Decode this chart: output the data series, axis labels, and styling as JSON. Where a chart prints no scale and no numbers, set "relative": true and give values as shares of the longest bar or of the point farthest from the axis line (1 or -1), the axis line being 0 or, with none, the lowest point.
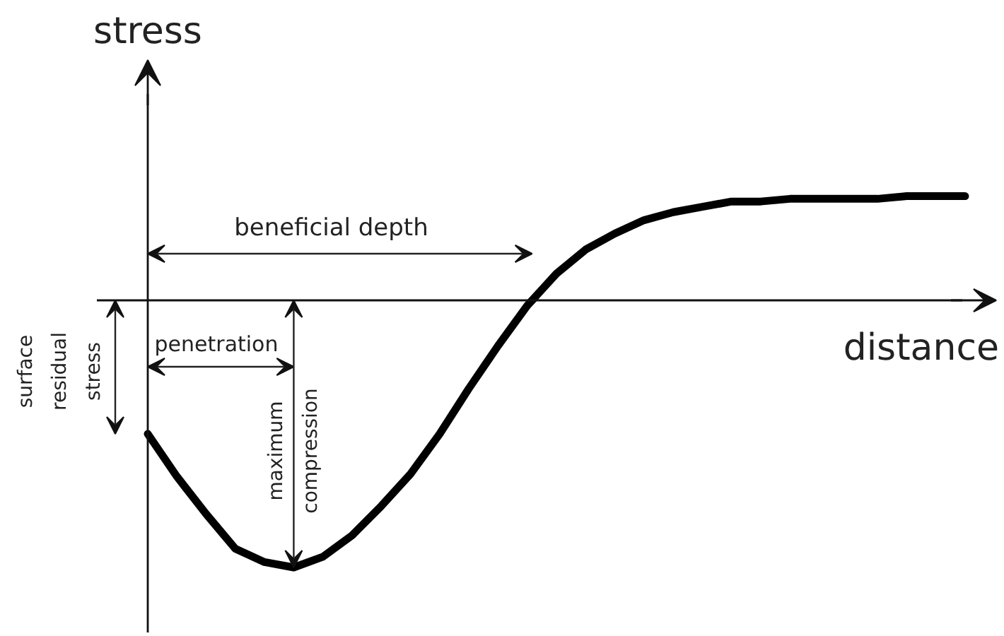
{
  "chart_data": {
    "type": "line",
    "relative": true,
    "xlabel": "distance",
    "ylabel": "stress",
    "line_style": "solid",
    "categories": [
      null,
      null,
      null,
      null,
      null,
      null,
      null,
      null,
      null,
      null,
      null,
      null,
      null,
      null,
      null,
      null,
      null,
      null,
      null,
      null,
      null,
      null,
      null,
      null,
      null,
      null,
      null,
      null,
      null
    ],
    "series": [
      {
        "color": "#000000",
        "values": [
          -0.5,
          -0.66,
          -0.8,
          -0.93,
          -0.98,
          -1.0,
          -0.96,
          -0.88,
          -0.77,
          -0.65,
          -0.5,
          -0.33,
          -0.17,
          -0.02,
          0.1,
          0.19,
          0.25,
          0.3,
          0.33,
          0.35,
          0.37,
          0.37,
          0.38,
          0.38,
          0.38,
          0.38,
          0.39,
          0.39,
          0.39
        ]
      }
    ],
    "annotations": [
      "beneficial depth",
      "penetration",
      "maximum compression",
      "surface residual stress"
    ]
  }
}
